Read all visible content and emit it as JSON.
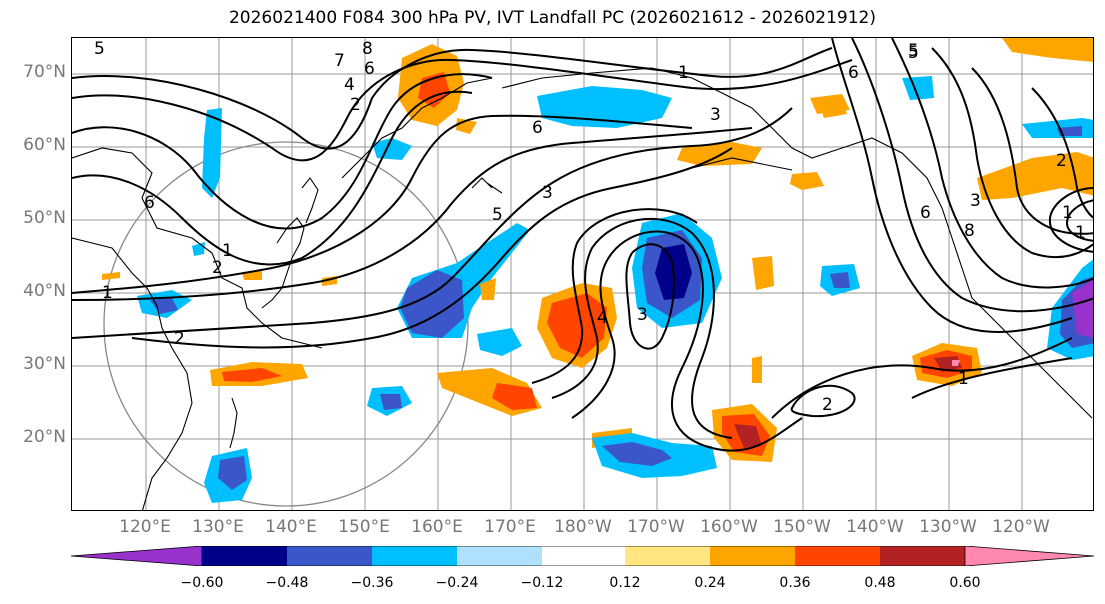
{
  "title": "2026021400 F084 300 hPa PV, IVT Landfall PC (2026021612 - 2026021912)",
  "lat_labels": [
    "70°N",
    "60°N",
    "50°N",
    "40°N",
    "30°N",
    "20°N"
  ],
  "lon_labels": [
    "120°E",
    "130°E",
    "140°E",
    "150°E",
    "160°E",
    "170°E",
    "180°W",
    "170°W",
    "160°W",
    "150°W",
    "140°W",
    "130°W",
    "120°W"
  ],
  "colorbar": {
    "ticks": [
      "−0.60",
      "−0.48",
      "−0.36",
      "−0.24",
      "−0.12",
      "0.12",
      "0.24",
      "0.36",
      "0.48",
      "0.60"
    ],
    "colors": [
      "#9932cc",
      "#00008b",
      "#3a56c8",
      "#00bfff",
      "#b0e0ff",
      "#ffffff",
      "#ffe680",
      "#ffa500",
      "#ff4500",
      "#b22222",
      "#ff88b0"
    ]
  },
  "contour_labels": [
    "5",
    "8",
    "7",
    "6",
    "4",
    "2",
    "1",
    "1",
    "6",
    "5",
    "6",
    "3",
    "3",
    "5",
    "6",
    "1",
    "3",
    "2",
    "1",
    "2",
    "5",
    "8",
    "6",
    "2",
    "1",
    "4",
    "3",
    "2",
    "1"
  ],
  "anomaly_colors": {
    "neg_light": "#b0e0ff",
    "neg_mid": "#00bfff",
    "neg_strong": "#3a56c8",
    "neg_max": "#00008b",
    "neg_extreme": "#9932cc",
    "pos_light": "#ffe680",
    "pos_mid": "#ffa500",
    "pos_strong": "#ff4500",
    "pos_max": "#b22222",
    "pos_extreme": "#ff88b0"
  }
}
